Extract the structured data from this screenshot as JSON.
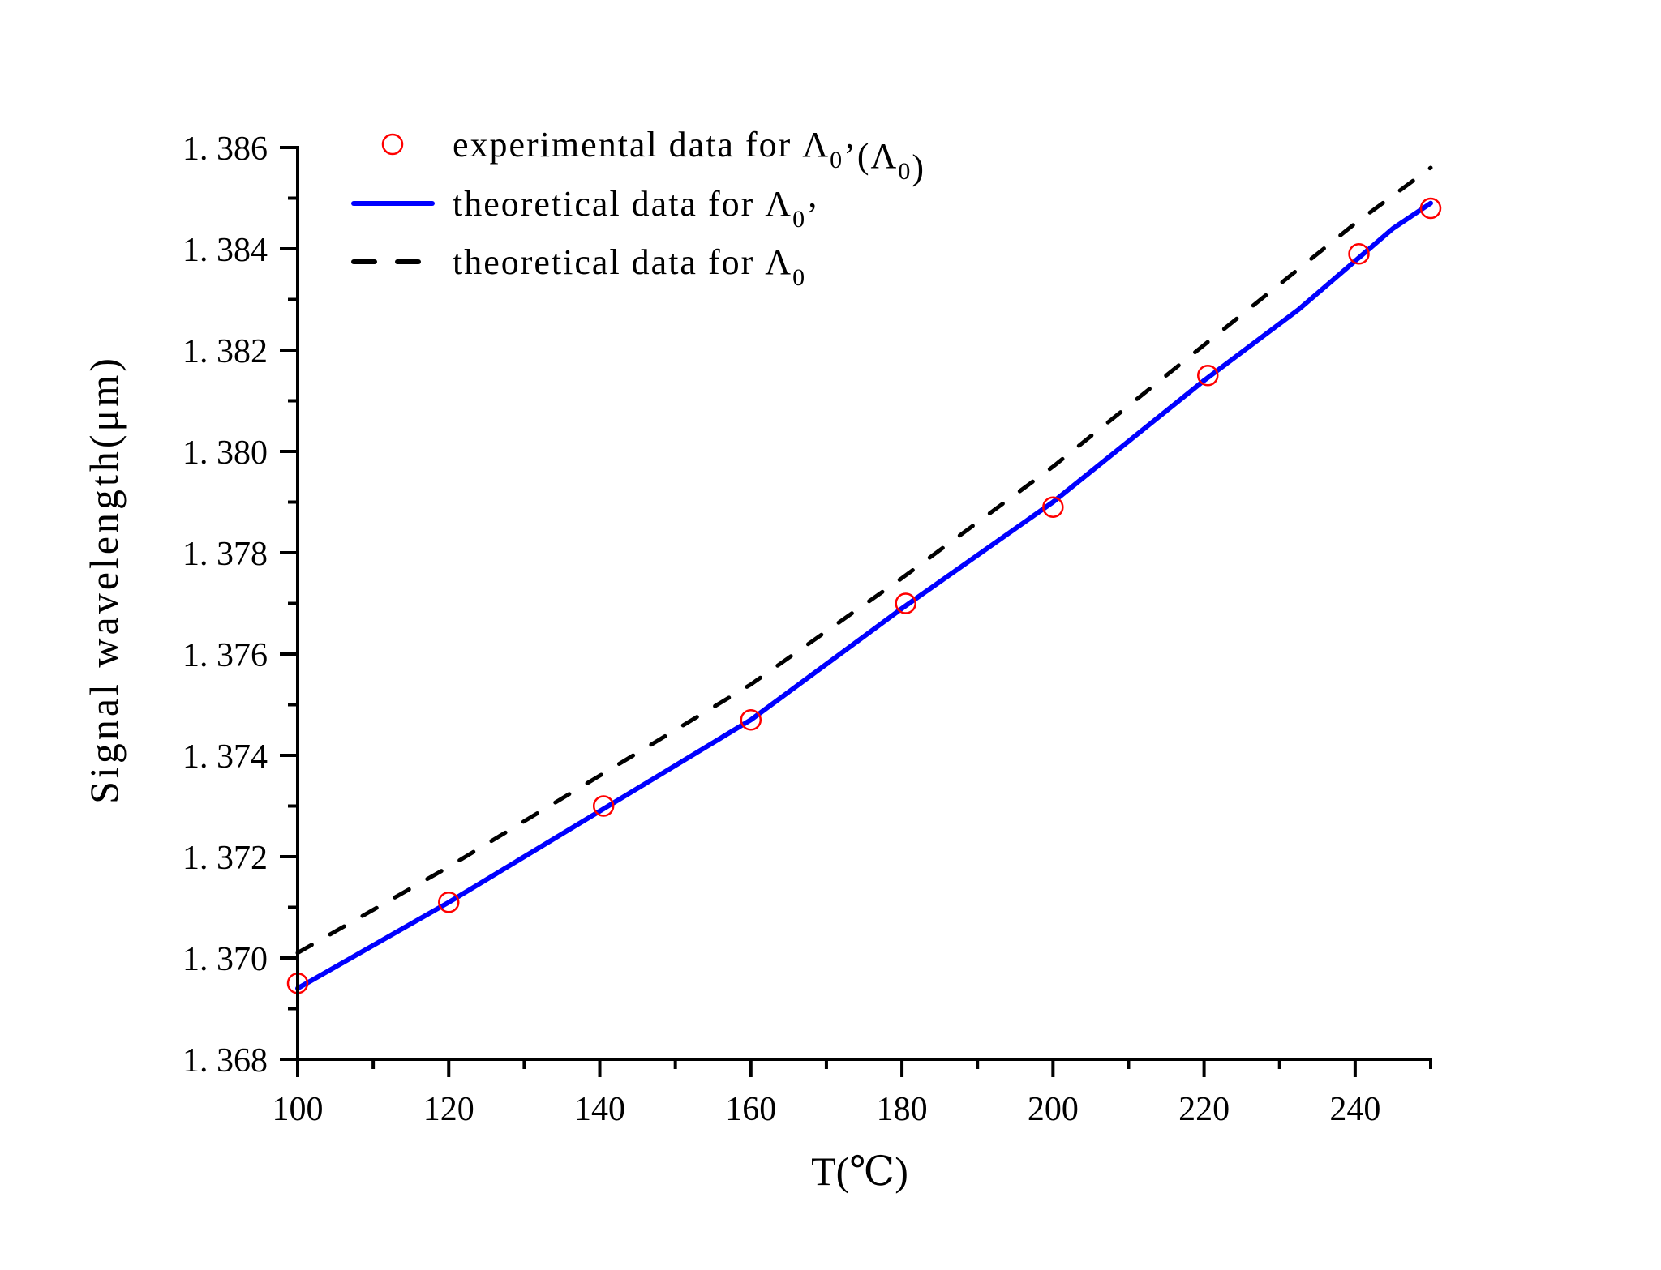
{
  "chart_data": {
    "type": "line",
    "title": "",
    "xlabel": "T(℃)",
    "ylabel": "Signal wavelength(μm)",
    "xlim": [
      100,
      250
    ],
    "ylim": [
      1.368,
      1.386
    ],
    "x_ticks": [
      100,
      120,
      140,
      160,
      180,
      200,
      220,
      240
    ],
    "x_tick_labels": [
      "100",
      "120",
      "140",
      "160",
      "180",
      "200",
      "220",
      "240"
    ],
    "x_minor_step": 10,
    "y_ticks": [
      1.368,
      1.37,
      1.372,
      1.374,
      1.376,
      1.378,
      1.38,
      1.382,
      1.384,
      1.386
    ],
    "y_tick_labels": [
      "1. 368",
      "1. 370",
      "1. 372",
      "1. 374",
      "1. 376",
      "1. 378",
      "1. 380",
      "1. 382",
      "1. 384",
      "1. 386"
    ],
    "y_minor_step": 0.001,
    "grid": false,
    "legend_position": "upper left",
    "series": [
      {
        "name": "experimental data for Λ0’(Λ0)",
        "style": "scatter",
        "marker": "open-circle",
        "color": "#ff0000",
        "x": [
          100,
          120,
          140.5,
          160,
          180.5,
          200,
          220.5,
          240.5,
          250
        ],
        "values": [
          1.3695,
          1.3711,
          1.373,
          1.3747,
          1.377,
          1.3789,
          1.3815,
          1.3839,
          1.3848
        ]
      },
      {
        "name": "theoretical data for Λ0’",
        "style": "solid",
        "color": "#0000ff",
        "x": [
          100,
          120,
          140,
          160,
          180,
          200,
          220,
          232.5,
          245,
          250
        ],
        "values": [
          1.3694,
          1.3711,
          1.3729,
          1.3747,
          1.3769,
          1.379,
          1.3814,
          1.3828,
          1.3844,
          1.3849
        ]
      },
      {
        "name": "theoretical data for Λ0",
        "style": "dashed",
        "color": "#000000",
        "x": [
          100,
          120,
          140,
          160,
          180,
          200,
          220,
          240,
          250
        ],
        "values": [
          1.3701,
          1.3718,
          1.3736,
          1.3754,
          1.3775,
          1.3797,
          1.3821,
          1.3845,
          1.3856
        ]
      }
    ]
  },
  "legend": {
    "items": [
      {
        "main": "experimental data for Λ",
        "sub": "0",
        "tail": "’(Λ",
        "sub2": "0",
        "tail2": ")"
      },
      {
        "main": "theoretical data for Λ",
        "sub": "0",
        "tail": "’",
        "sub2": "",
        "tail2": ""
      },
      {
        "main": "theoretical data for Λ",
        "sub": "0",
        "tail": "",
        "sub2": "",
        "tail2": ""
      }
    ]
  }
}
